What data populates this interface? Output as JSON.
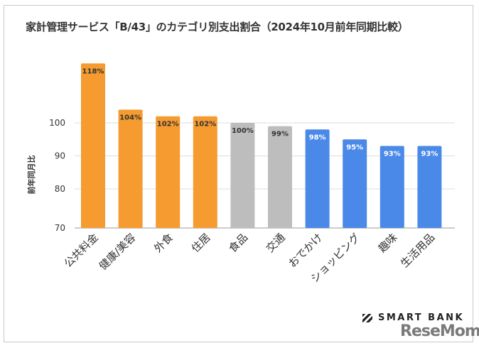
{
  "chart_data": {
    "type": "bar",
    "title": "家計管理サービス「B/43」のカテゴリ別支出割合（2024年10月前年同期比較）",
    "xlabel": "",
    "ylabel": "前年同月比",
    "ylim": [
      70,
      120
    ],
    "yticks": [
      70,
      80,
      90,
      100
    ],
    "grid": true,
    "categories": [
      "公共料金",
      "健康/美容",
      "外食",
      "住居",
      "食品",
      "交通",
      "おでかけ",
      "ショッピング",
      "趣味",
      "生活用品"
    ],
    "values": [
      118,
      104,
      102,
      102,
      100,
      99,
      98,
      95,
      93,
      93
    ],
    "labels": [
      "118%",
      "104%",
      "102%",
      "102%",
      "100%",
      "99%",
      "98%",
      "95%",
      "93%",
      "93%"
    ],
    "colors": [
      "#f59b30",
      "#f59b30",
      "#f59b30",
      "#f59b30",
      "#bdbdbd",
      "#bdbdbd",
      "#4a89e8",
      "#4a89e8",
      "#4a89e8",
      "#4a89e8"
    ],
    "label_colors": [
      "#333333",
      "#333333",
      "#333333",
      "#333333",
      "#333333",
      "#333333",
      "#ffffff",
      "#ffffff",
      "#ffffff",
      "#ffffff"
    ]
  },
  "logos": {
    "smartbank": "SMART BANK",
    "resemom": "ReseMom"
  }
}
